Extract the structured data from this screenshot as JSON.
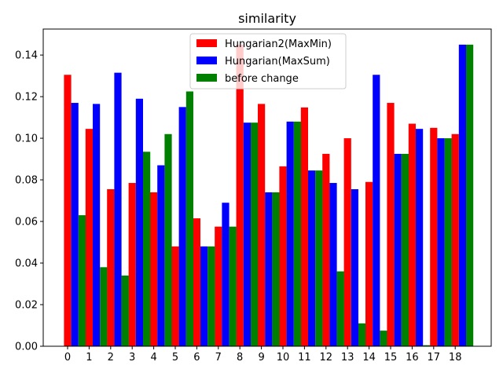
{
  "chart_data": {
    "type": "bar",
    "title": "similarity",
    "xlabel": "",
    "ylabel": "",
    "categories": [
      "0",
      "1",
      "2",
      "3",
      "4",
      "5",
      "6",
      "7",
      "8",
      "9",
      "10",
      "11",
      "12",
      "13",
      "14",
      "15",
      "16",
      "17",
      "18"
    ],
    "ylim": [
      0,
      0.1525
    ],
    "yticks": [
      "0.00",
      "0.02",
      "0.04",
      "0.06",
      "0.08",
      "0.10",
      "0.12",
      "0.14"
    ],
    "legend_position": "top-center",
    "grid": false,
    "series": [
      {
        "name": "Hungarian2(MaxMin)",
        "color": "#ff0000",
        "values": [
          0.1305,
          0.1045,
          0.0755,
          0.0785,
          0.074,
          0.048,
          0.0615,
          0.0575,
          0.145,
          0.1165,
          0.0865,
          0.1148,
          0.0925,
          0.1,
          0.079,
          0.117,
          0.107,
          0.105,
          0.102
        ]
      },
      {
        "name": "Hungarian(MaxSum)",
        "color": "#0000ff",
        "values": [
          0.117,
          0.1165,
          0.1315,
          0.119,
          0.087,
          0.115,
          0.048,
          0.069,
          0.1075,
          0.074,
          0.108,
          0.0845,
          0.0785,
          0.0755,
          0.1305,
          0.0925,
          0.1045,
          0.1,
          0.145
        ]
      },
      {
        "name": "before change",
        "color": "#008000",
        "values": [
          0.063,
          0.038,
          0.034,
          0.0935,
          0.102,
          0.1225,
          0.048,
          0.0575,
          0.1075,
          0.074,
          0.108,
          0.0845,
          0.036,
          0.011,
          0.0075,
          0.0925,
          0.0005,
          0.1,
          0.145
        ]
      }
    ]
  }
}
